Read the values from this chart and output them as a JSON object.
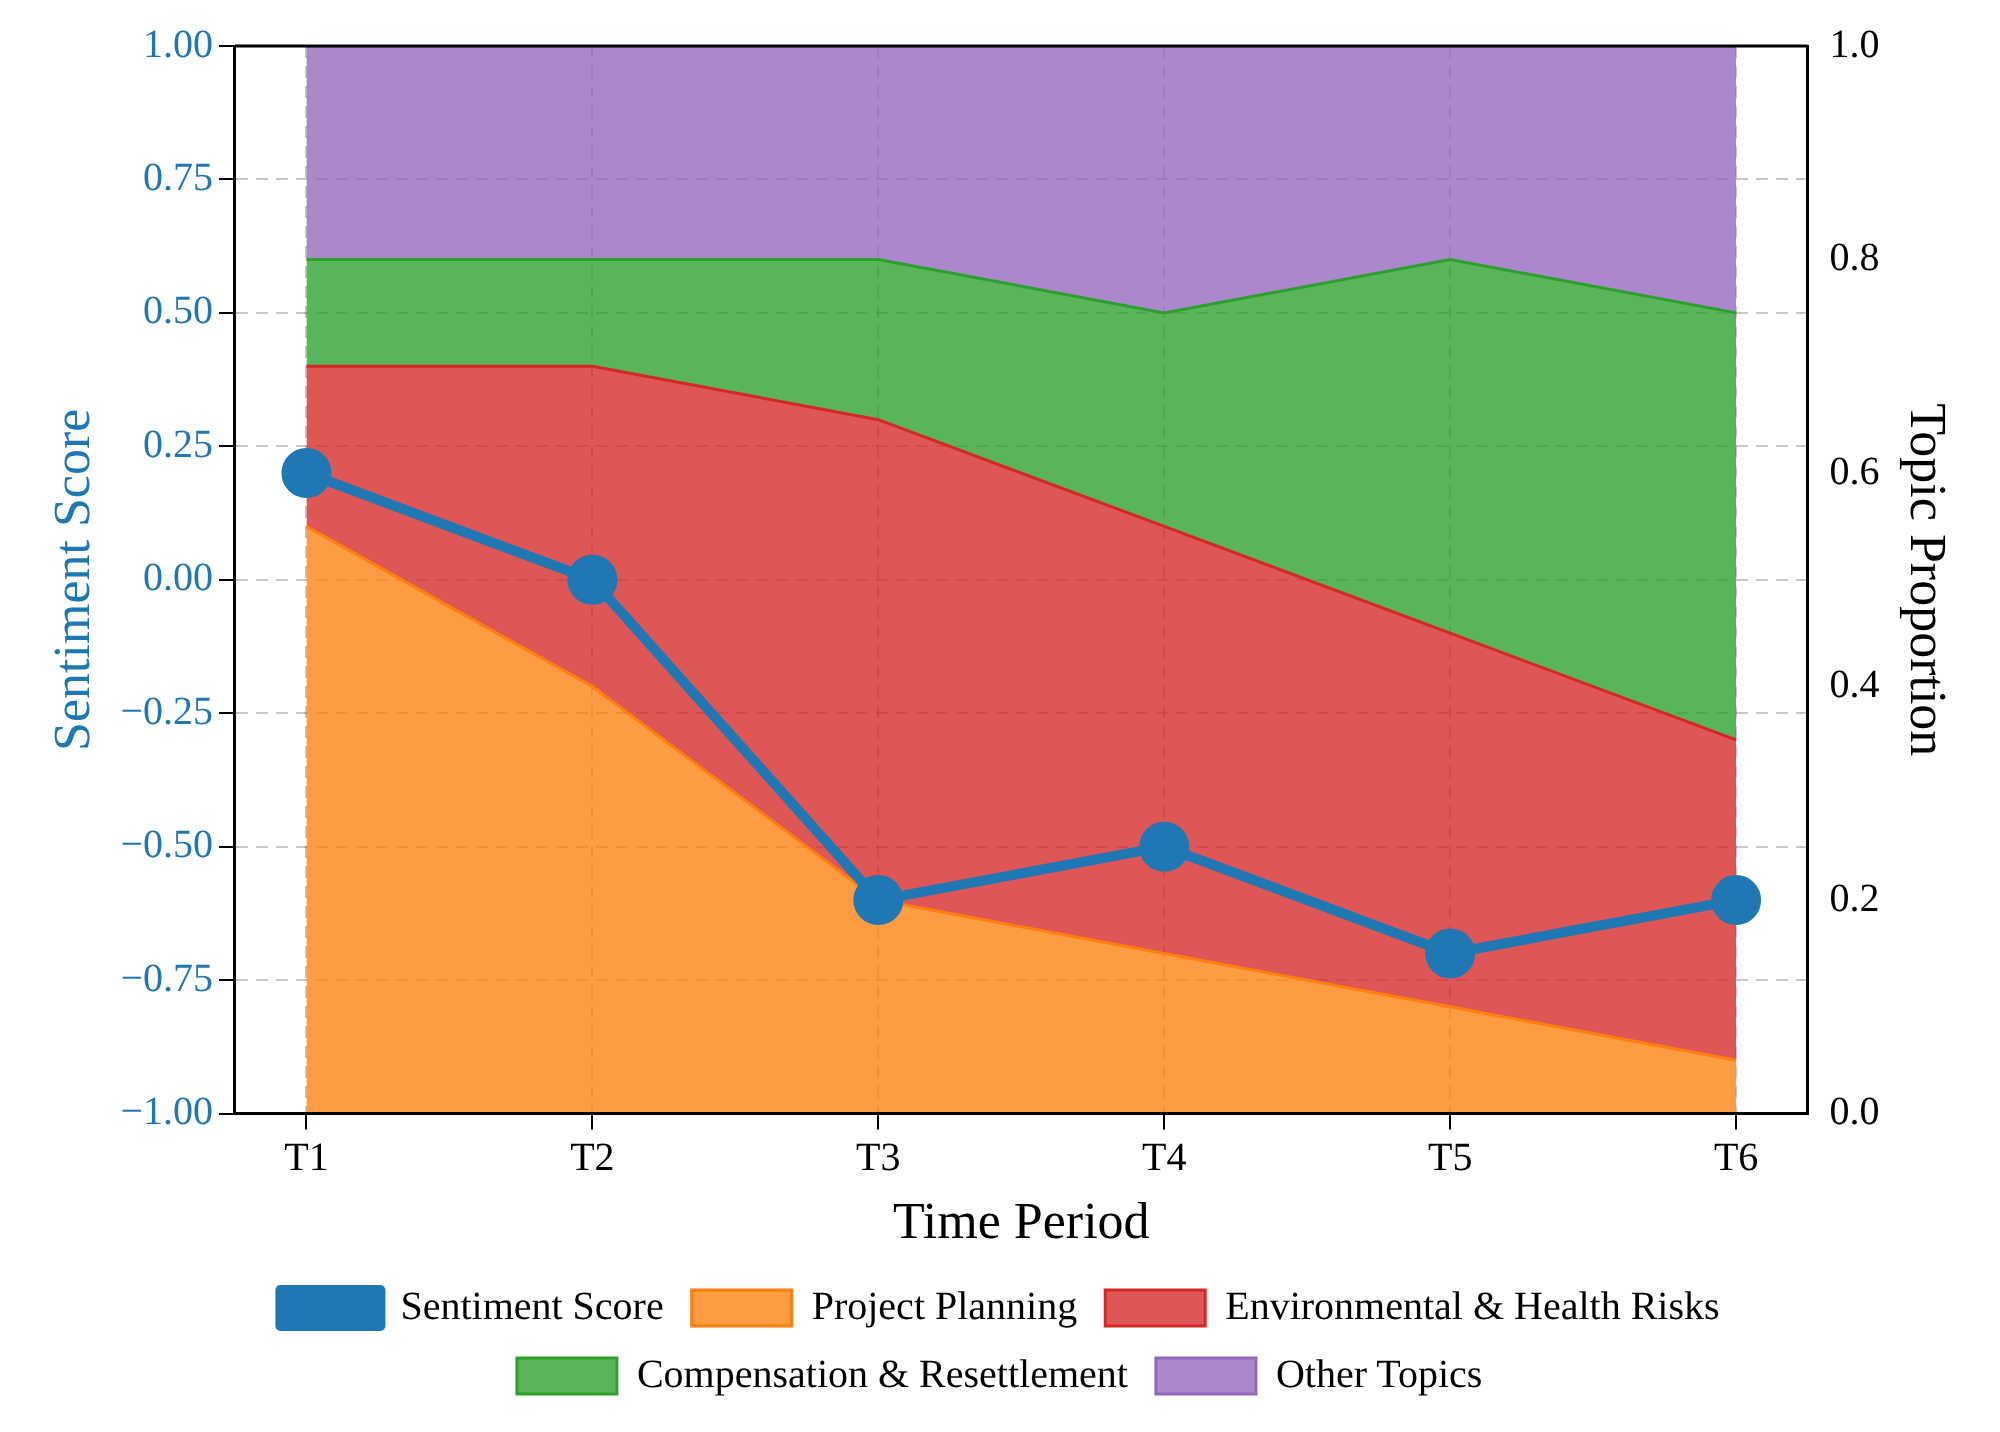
{
  "chart_data": {
    "type": "area",
    "stacked": true,
    "categories": [
      "T1",
      "T2",
      "T3",
      "T4",
      "T5",
      "T6"
    ],
    "xlabel": "Time Period",
    "ylabel": "Sentiment Score",
    "y2label": "Topic Proportion",
    "ylim": [
      -1,
      1
    ],
    "yticks": [
      {
        "value": -1,
        "label": "−1.00"
      },
      {
        "value": -0.75,
        "label": "−0.75"
      },
      {
        "value": -0.5,
        "label": "−0.50"
      },
      {
        "value": -0.25,
        "label": "−0.25"
      },
      {
        "value": 0,
        "label": "0.00"
      },
      {
        "value": 0.25,
        "label": "0.25"
      },
      {
        "value": 0.5,
        "label": "0.50"
      },
      {
        "value": 0.75,
        "label": "0.75"
      },
      {
        "value": 1,
        "label": "1.00"
      }
    ],
    "y2lim": [
      0,
      1
    ],
    "y2ticks": [
      {
        "value": 0,
        "label": "0.0"
      },
      {
        "value": 0.2,
        "label": "0.2"
      },
      {
        "value": 0.4,
        "label": "0.4"
      },
      {
        "value": 0.6,
        "label": "0.6"
      },
      {
        "value": 0.8,
        "label": "0.8"
      },
      {
        "value": 1,
        "label": "1.0"
      }
    ],
    "grid": true,
    "legend": "bottom",
    "series": [
      {
        "name": "Sentiment Score",
        "type": "line",
        "marker": "circle",
        "color": "#1f77b4",
        "values": [
          0.2,
          0.0,
          -0.6,
          -0.5,
          -0.7,
          -0.6
        ]
      },
      {
        "name": "Project Planning",
        "axis": "y2",
        "color": "#ff7f0e",
        "values": [
          0.55,
          0.4,
          0.2,
          0.15,
          0.1,
          0.05
        ]
      },
      {
        "name": "Environmental & Health Risks",
        "axis": "y2",
        "color": "#d62728",
        "values": [
          0.15,
          0.3,
          0.45,
          0.4,
          0.35,
          0.3
        ]
      },
      {
        "name": "Compensation & Resettlement",
        "axis": "y2",
        "color": "#2ca02c",
        "values": [
          0.1,
          0.1,
          0.15,
          0.2,
          0.35,
          0.4
        ]
      },
      {
        "name": "Other Topics",
        "axis": "y2",
        "color": "#9467bd",
        "values": [
          0.2,
          0.2,
          0.2,
          0.25,
          0.2,
          0.25
        ]
      }
    ]
  }
}
